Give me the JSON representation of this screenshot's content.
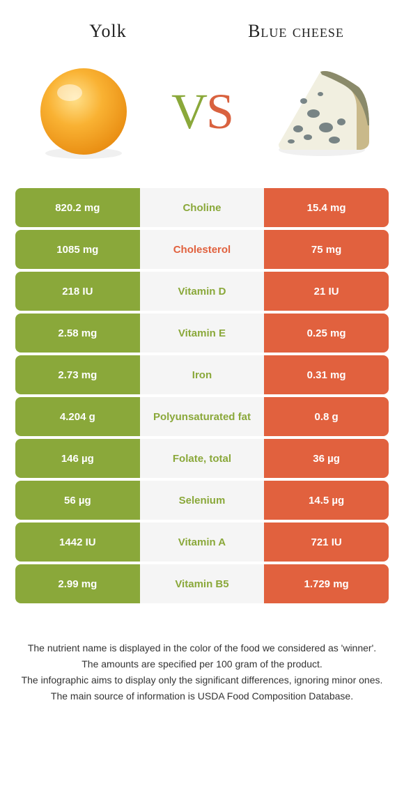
{
  "colors": {
    "left": "#8aa83a",
    "right": "#e1613e",
    "mid_bg": "#f5f5f5",
    "nutrient_left_win": "#8aa83a",
    "nutrient_right_win": "#e1613e"
  },
  "header": {
    "left_title": "Yolk",
    "right_title": "Blue cheese",
    "vs_v": "V",
    "vs_s": "S"
  },
  "rows": [
    {
      "left": "820.2 mg",
      "nutrient": "Choline",
      "right": "15.4 mg",
      "winner": "left"
    },
    {
      "left": "1085 mg",
      "nutrient": "Cholesterol",
      "right": "75 mg",
      "winner": "right"
    },
    {
      "left": "218 IU",
      "nutrient": "Vitamin D",
      "right": "21 IU",
      "winner": "left"
    },
    {
      "left": "2.58 mg",
      "nutrient": "Vitamin E",
      "right": "0.25 mg",
      "winner": "left"
    },
    {
      "left": "2.73 mg",
      "nutrient": "Iron",
      "right": "0.31 mg",
      "winner": "left"
    },
    {
      "left": "4.204 g",
      "nutrient": "Polyunsaturated fat",
      "right": "0.8 g",
      "winner": "left"
    },
    {
      "left": "146 µg",
      "nutrient": "Folate, total",
      "right": "36 µg",
      "winner": "left"
    },
    {
      "left": "56 µg",
      "nutrient": "Selenium",
      "right": "14.5 µg",
      "winner": "left"
    },
    {
      "left": "1442 IU",
      "nutrient": "Vitamin A",
      "right": "721 IU",
      "winner": "left"
    },
    {
      "left": "2.99 mg",
      "nutrient": "Vitamin B5",
      "right": "1.729 mg",
      "winner": "left"
    }
  ],
  "footer": {
    "line1": "The nutrient name is displayed in the color of the food we considered as 'winner'.",
    "line2": "The amounts are specified per 100 gram of the product.",
    "line3": "The infographic aims to display only the significant differences, ignoring minor ones.",
    "line4": "The main source of information is USDA Food Composition Database."
  }
}
